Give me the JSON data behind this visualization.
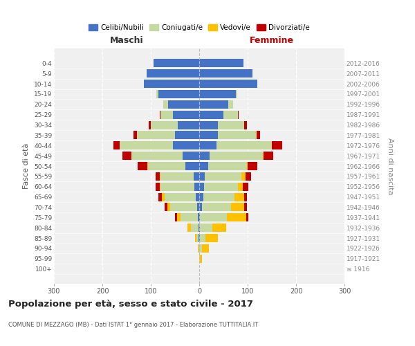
{
  "age_groups": [
    "100+",
    "95-99",
    "90-94",
    "85-89",
    "80-84",
    "75-79",
    "70-74",
    "65-69",
    "60-64",
    "55-59",
    "50-54",
    "45-49",
    "40-44",
    "35-39",
    "30-34",
    "25-29",
    "20-24",
    "15-19",
    "10-14",
    "5-9",
    "0-4"
  ],
  "birth_years": [
    "≤ 1916",
    "1917-1921",
    "1922-1926",
    "1927-1931",
    "1932-1936",
    "1937-1941",
    "1942-1946",
    "1947-1951",
    "1952-1956",
    "1957-1961",
    "1962-1966",
    "1967-1971",
    "1972-1976",
    "1977-1981",
    "1982-1986",
    "1987-1991",
    "1992-1996",
    "1997-2001",
    "2002-2006",
    "2007-2011",
    "2012-2016"
  ],
  "male_celibi": [
    0,
    0,
    0,
    1,
    2,
    3,
    5,
    7,
    10,
    12,
    28,
    35,
    55,
    50,
    45,
    55,
    65,
    85,
    115,
    108,
    95
  ],
  "male_coniugati": [
    0,
    0,
    2,
    5,
    15,
    35,
    55,
    65,
    70,
    68,
    78,
    105,
    110,
    78,
    55,
    25,
    10,
    3,
    0,
    0,
    0
  ],
  "male_vedovi": [
    0,
    0,
    1,
    3,
    8,
    8,
    6,
    5,
    2,
    2,
    1,
    0,
    0,
    0,
    0,
    0,
    0,
    0,
    0,
    0,
    0
  ],
  "male_divorziati": [
    0,
    0,
    0,
    0,
    0,
    4,
    5,
    8,
    8,
    8,
    20,
    18,
    12,
    8,
    5,
    2,
    0,
    0,
    0,
    0,
    0
  ],
  "female_nubili": [
    0,
    0,
    0,
    1,
    2,
    2,
    5,
    8,
    10,
    12,
    18,
    22,
    35,
    38,
    38,
    50,
    60,
    75,
    120,
    110,
    92
  ],
  "female_coniugate": [
    0,
    2,
    5,
    12,
    25,
    55,
    60,
    65,
    70,
    75,
    80,
    110,
    115,
    80,
    55,
    30,
    10,
    3,
    0,
    0,
    0
  ],
  "female_vedove": [
    0,
    3,
    15,
    25,
    28,
    40,
    28,
    20,
    10,
    8,
    2,
    1,
    0,
    0,
    0,
    0,
    0,
    0,
    0,
    0,
    0
  ],
  "female_divorziate": [
    0,
    0,
    0,
    0,
    0,
    5,
    5,
    5,
    12,
    12,
    20,
    20,
    22,
    8,
    5,
    2,
    0,
    0,
    0,
    0,
    0
  ],
  "color_celibi": "#4472c4",
  "color_coniugati": "#c5d9a0",
  "color_vedovi": "#ffc000",
  "color_divorziati": "#c00000",
  "xlim": 300,
  "xticks": [
    -300,
    -200,
    -100,
    0,
    100,
    200,
    300
  ],
  "xtick_labels": [
    "300",
    "200",
    "100",
    "0",
    "100",
    "200",
    "300"
  ],
  "title": "Popolazione per età, sesso e stato civile - 2017",
  "subtitle": "COMUNE DI MEZZAGO (MB) - Dati ISTAT 1° gennaio 2017 - Elaborazione TUTTITALIA.IT",
  "ylabel_left": "Fasce di età",
  "ylabel_right": "Anni di nascita",
  "label_maschi": "Maschi",
  "label_femmine": "Femmine",
  "legend_labels": [
    "Celibi/Nubili",
    "Coniugati/e",
    "Vedovi/e",
    "Divorziati/e"
  ],
  "bg_color": "#f0f0f0"
}
